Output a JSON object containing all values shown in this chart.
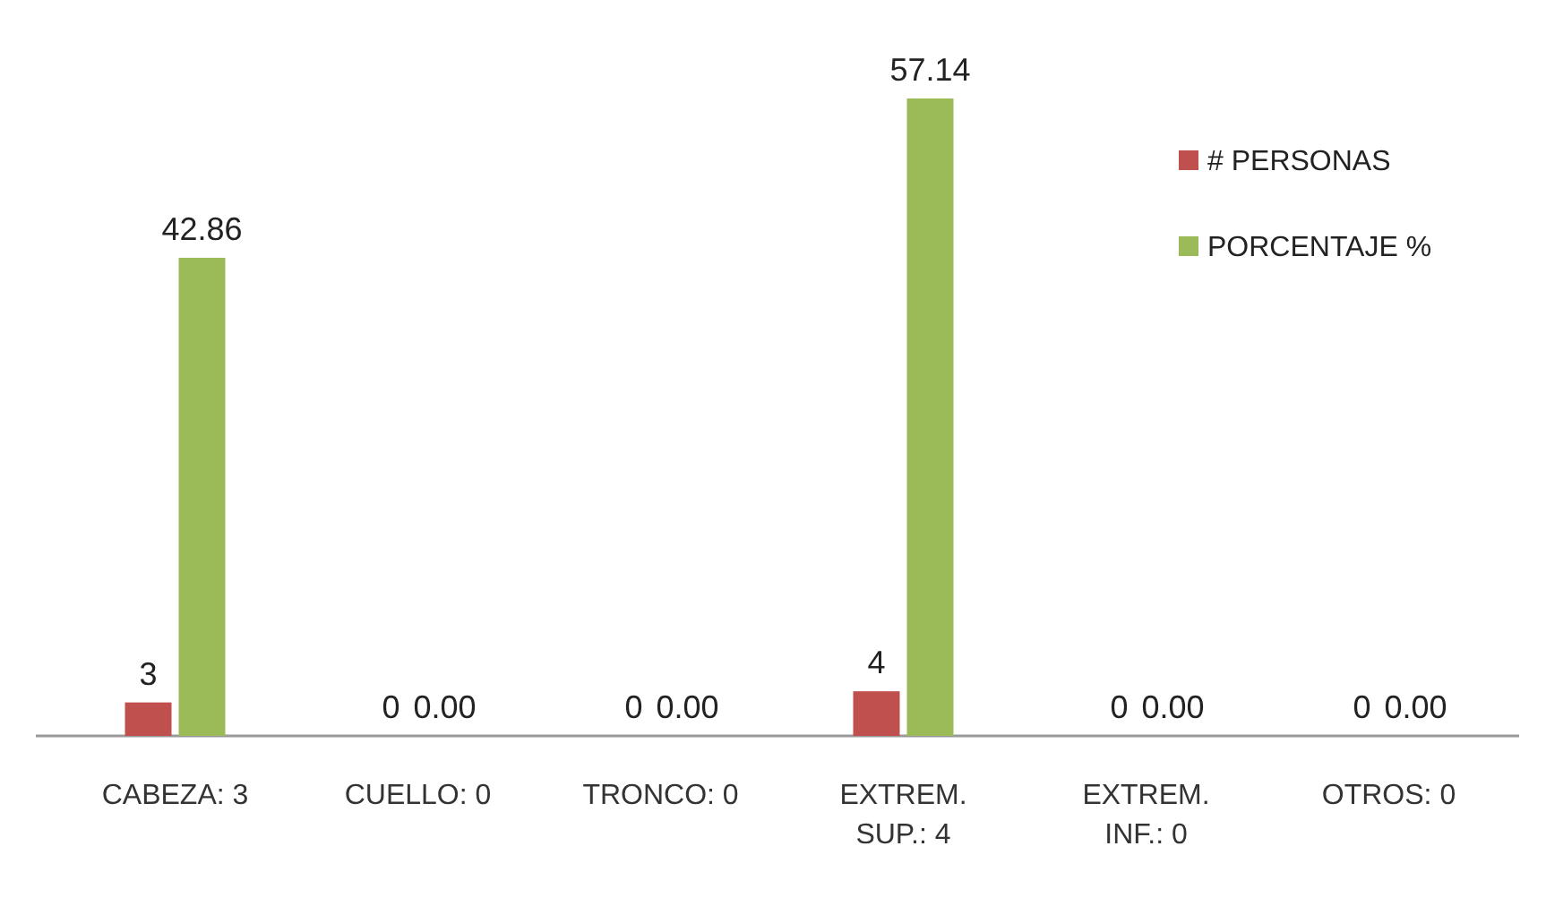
{
  "chart_data": {
    "type": "bar",
    "categories": [
      "CABEZA: 3",
      "CUELLO: 0",
      "TRONCO: 0",
      "EXTREM. SUP.: 4",
      "EXTREM. INF.: 0",
      "OTROS: 0"
    ],
    "series": [
      {
        "name": "# PERSONAS",
        "color": "#c0504d",
        "values": [
          3,
          0,
          0,
          4,
          0,
          0
        ],
        "value_labels": [
          "3",
          "0",
          "0",
          "4",
          "0",
          "0"
        ]
      },
      {
        "name": "PORCENTAJE %",
        "color": "#9bbb59",
        "values": [
          42.86,
          0,
          0,
          57.14,
          0,
          0
        ],
        "value_labels": [
          "42.86",
          "0.00",
          "0.00",
          "57.14",
          "0.00",
          "0.00"
        ]
      }
    ],
    "legend": "top right"
  }
}
